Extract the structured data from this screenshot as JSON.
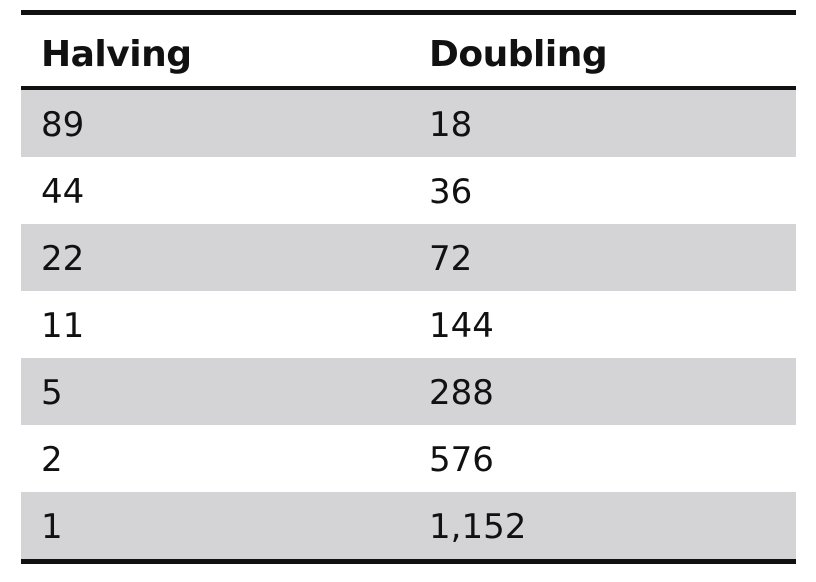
{
  "table": {
    "headers": [
      "Halving",
      "Doubling"
    ],
    "rows": [
      [
        "89",
        "18"
      ],
      [
        "44",
        "36"
      ],
      [
        "22",
        "72"
      ],
      [
        "11",
        "144"
      ],
      [
        "5",
        "288"
      ],
      [
        "2",
        "576"
      ],
      [
        "1",
        "1,152"
      ]
    ]
  }
}
